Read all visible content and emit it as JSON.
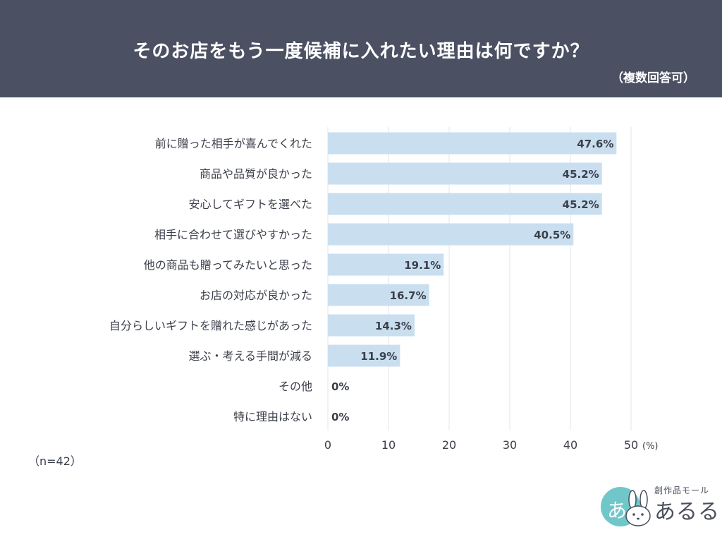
{
  "header": {
    "title": "そのお店をもう一度候補に入れたい理由は何ですか？",
    "subtitle": "（複数回答可）"
  },
  "note": "（n=42）",
  "logo": {
    "sub": "創作品モール",
    "main": "あるる",
    "mark": "あ"
  },
  "colors": {
    "header_bg": "#4b5063",
    "bar": "#c9dff0",
    "grid": "#e3e6ee",
    "logo_circle": "#6fc7c9"
  },
  "chart_data": {
    "type": "bar",
    "orientation": "horizontal",
    "categories": [
      "前に贈った相手が喜んでくれた",
      "商品や品質が良かった",
      "安心してギフトを選べた",
      "相手に合わせて選びやすかった",
      "他の商品も贈ってみたいと思った",
      "お店の対応が良かった",
      "自分らしいギフトを贈れた感じがあった",
      "選ぶ・考える手間が減る",
      "その他",
      "特に理由はない"
    ],
    "values": [
      47.6,
      45.2,
      45.2,
      40.5,
      19.1,
      16.7,
      14.3,
      11.9,
      0,
      0
    ],
    "value_labels": [
      "47.6%",
      "45.2%",
      "45.2%",
      "40.5%",
      "19.1%",
      "16.7%",
      "14.3%",
      "11.9%",
      "0%",
      "0%"
    ],
    "xticks": [
      "0",
      "10",
      "20",
      "30",
      "40",
      "50"
    ],
    "xunit": "(%)",
    "xlim": [
      0,
      50
    ],
    "grid": true
  }
}
